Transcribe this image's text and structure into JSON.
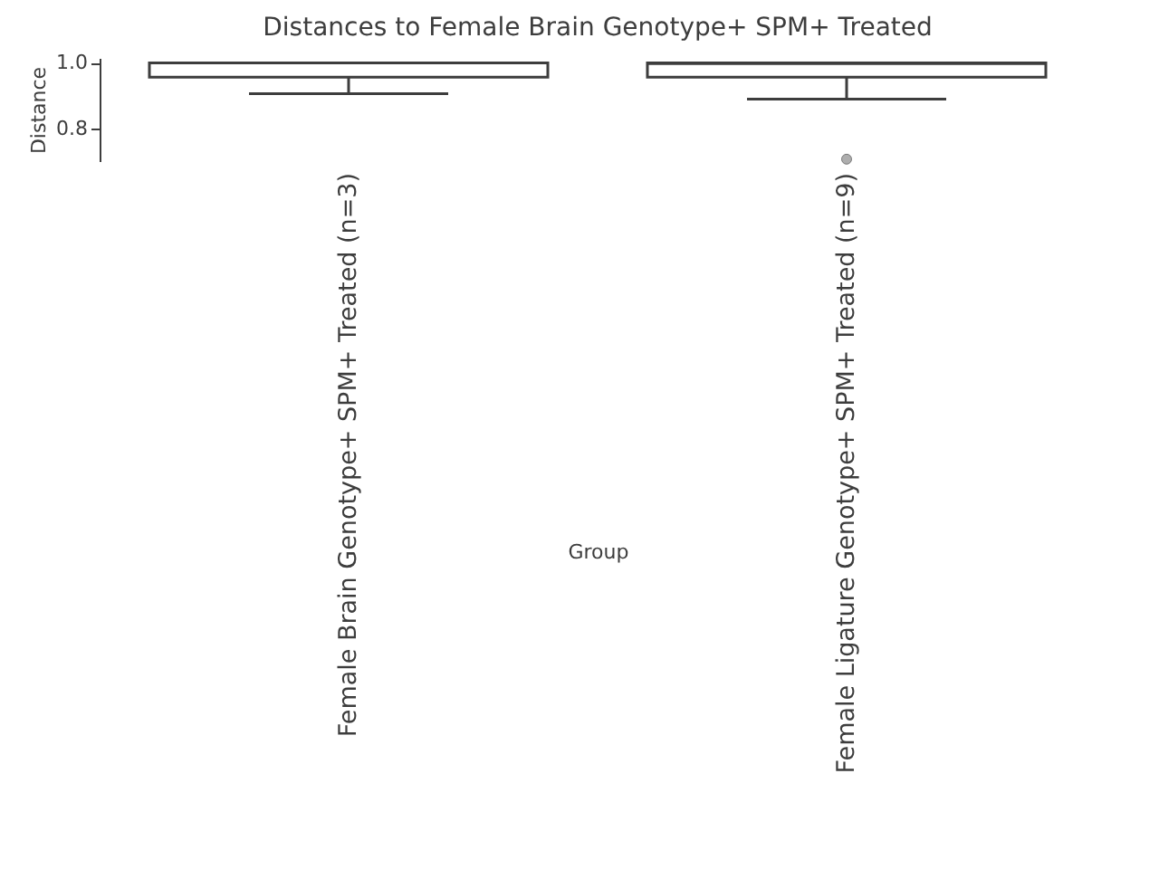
{
  "chart_data": {
    "type": "box",
    "title": "Distances to Female Brain Genotype+ SPM+ Treated",
    "xlabel": "Group",
    "ylabel": "Distance",
    "categories": [
      "Female Brain Genotype+ SPM+ Treated (n=3)",
      "Female Ligature Genotype+ SPM+ Treated (n=9)"
    ],
    "boxes": [
      {
        "low": 0.906,
        "q1": 0.956,
        "median": 1.0,
        "q3": 1.0,
        "high": 1.0
      },
      {
        "low": 0.889,
        "q1": 0.956,
        "median": 0.998,
        "q3": 1.0,
        "high": 1.0,
        "outliers": [
          0.706
        ]
      }
    ],
    "ylim": [
      0.7,
      1.015
    ],
    "yticks": [
      0.8,
      {
        "value": 1.0,
        "label": "1.0"
      }
    ],
    "grid": false
  }
}
